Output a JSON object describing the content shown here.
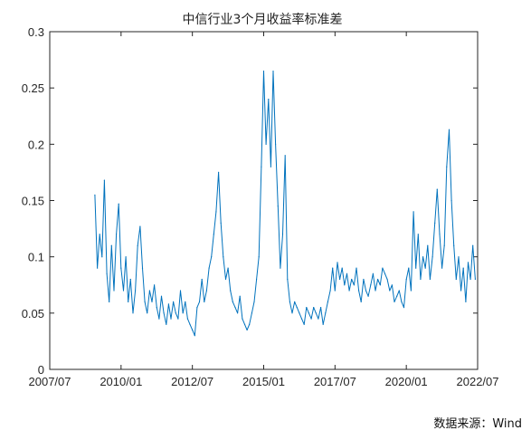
{
  "chart_data": {
    "type": "line",
    "title": "中信行业3个月收益率标准差",
    "xlabel": "",
    "ylabel": "",
    "ylim": [
      0,
      0.3
    ],
    "yticks": [
      0,
      0.05,
      0.1,
      0.15,
      0.2,
      0.25,
      0.3
    ],
    "ytick_labels": [
      "0",
      "0.05",
      "0.1",
      "0.15",
      "0.2",
      "0.25",
      "0.3"
    ],
    "xlim": [
      "2007-07",
      "2022-07"
    ],
    "xticks": [
      "2007-07",
      "2010-01",
      "2012-07",
      "2015-01",
      "2017-07",
      "2020-01",
      "2022-07"
    ],
    "xtick_labels": [
      "2007/07",
      "2010/01",
      "2012/07",
      "2015/01",
      "2017/07",
      "2020/01",
      "2022/07"
    ],
    "grid": false,
    "series": [
      {
        "color": "#0072BD",
        "x": [
          "2009-02",
          "2009-03",
          "2009-04",
          "2009-05",
          "2009-06",
          "2009-07",
          "2009-08",
          "2009-09",
          "2009-10",
          "2009-11",
          "2009-12",
          "2010-01",
          "2010-02",
          "2010-03",
          "2010-04",
          "2010-05",
          "2010-06",
          "2010-07",
          "2010-08",
          "2010-09",
          "2010-10",
          "2010-11",
          "2010-12",
          "2011-01",
          "2011-02",
          "2011-03",
          "2011-04",
          "2011-05",
          "2011-06",
          "2011-07",
          "2011-08",
          "2011-09",
          "2011-10",
          "2011-11",
          "2011-12",
          "2012-01",
          "2012-02",
          "2012-03",
          "2012-04",
          "2012-05",
          "2012-06",
          "2012-07",
          "2012-08",
          "2012-09",
          "2012-10",
          "2012-11",
          "2012-12",
          "2013-01",
          "2013-02",
          "2013-03",
          "2013-04",
          "2013-05",
          "2013-06",
          "2013-07",
          "2013-08",
          "2013-09",
          "2013-10",
          "2013-11",
          "2013-12",
          "2014-01",
          "2014-02",
          "2014-03",
          "2014-04",
          "2014-05",
          "2014-06",
          "2014-07",
          "2014-08",
          "2014-09",
          "2014-10",
          "2014-11",
          "2014-12",
          "2015-01",
          "2015-02",
          "2015-03",
          "2015-04",
          "2015-05",
          "2015-06",
          "2015-07",
          "2015-08",
          "2015-09",
          "2015-10",
          "2015-11",
          "2015-12",
          "2016-01",
          "2016-02",
          "2016-03",
          "2016-04",
          "2016-05",
          "2016-06",
          "2016-07",
          "2016-08",
          "2016-09",
          "2016-10",
          "2016-11",
          "2016-12",
          "2017-01",
          "2017-02",
          "2017-03",
          "2017-04",
          "2017-05",
          "2017-06",
          "2017-07",
          "2017-08",
          "2017-09",
          "2017-10",
          "2017-11",
          "2017-12",
          "2018-01",
          "2018-02",
          "2018-03",
          "2018-04",
          "2018-05",
          "2018-06",
          "2018-07",
          "2018-08",
          "2018-09",
          "2018-10",
          "2018-11",
          "2018-12",
          "2019-01",
          "2019-02",
          "2019-03",
          "2019-04",
          "2019-05",
          "2019-06",
          "2019-07",
          "2019-08",
          "2019-09",
          "2019-10",
          "2019-11",
          "2019-12",
          "2020-01",
          "2020-02",
          "2020-03",
          "2020-04",
          "2020-05",
          "2020-06",
          "2020-07",
          "2020-08",
          "2020-09",
          "2020-10",
          "2020-11",
          "2020-12",
          "2021-01",
          "2021-02",
          "2021-03",
          "2021-04",
          "2021-05",
          "2021-06",
          "2021-07",
          "2021-08",
          "2021-09",
          "2021-10",
          "2021-11",
          "2021-12",
          "2022-01",
          "2022-02",
          "2022-03",
          "2022-04",
          "2022-05",
          "2022-06"
        ],
        "values": [
          0.155,
          0.09,
          0.12,
          0.1,
          0.168,
          0.085,
          0.06,
          0.11,
          0.07,
          0.12,
          0.147,
          0.09,
          0.07,
          0.1,
          0.06,
          0.08,
          0.05,
          0.07,
          0.11,
          0.127,
          0.09,
          0.06,
          0.05,
          0.07,
          0.06,
          0.075,
          0.055,
          0.045,
          0.065,
          0.05,
          0.04,
          0.058,
          0.045,
          0.06,
          0.05,
          0.045,
          0.07,
          0.05,
          0.06,
          0.045,
          0.04,
          0.035,
          0.03,
          0.055,
          0.06,
          0.08,
          0.06,
          0.07,
          0.09,
          0.1,
          0.12,
          0.14,
          0.175,
          0.13,
          0.1,
          0.08,
          0.09,
          0.07,
          0.06,
          0.055,
          0.05,
          0.065,
          0.045,
          0.04,
          0.035,
          0.04,
          0.05,
          0.06,
          0.08,
          0.1,
          0.18,
          0.265,
          0.2,
          0.24,
          0.18,
          0.265,
          0.2,
          0.145,
          0.09,
          0.12,
          0.19,
          0.08,
          0.06,
          0.05,
          0.06,
          0.055,
          0.05,
          0.045,
          0.04,
          0.055,
          0.05,
          0.045,
          0.055,
          0.05,
          0.045,
          0.055,
          0.04,
          0.05,
          0.06,
          0.07,
          0.09,
          0.07,
          0.095,
          0.08,
          0.09,
          0.075,
          0.085,
          0.07,
          0.08,
          0.075,
          0.09,
          0.07,
          0.06,
          0.08,
          0.07,
          0.065,
          0.075,
          0.085,
          0.07,
          0.08,
          0.075,
          0.09,
          0.085,
          0.08,
          0.07,
          0.075,
          0.06,
          0.065,
          0.07,
          0.06,
          0.055,
          0.08,
          0.09,
          0.07,
          0.14,
          0.09,
          0.12,
          0.08,
          0.1,
          0.09,
          0.11,
          0.08,
          0.1,
          0.13,
          0.16,
          0.12,
          0.09,
          0.11,
          0.18,
          0.213,
          0.15,
          0.11,
          0.08,
          0.1,
          0.07,
          0.09,
          0.06,
          0.095,
          0.08,
          0.11,
          0.08
        ]
      }
    ]
  },
  "footer": {
    "source": "数据来源：Wind"
  }
}
